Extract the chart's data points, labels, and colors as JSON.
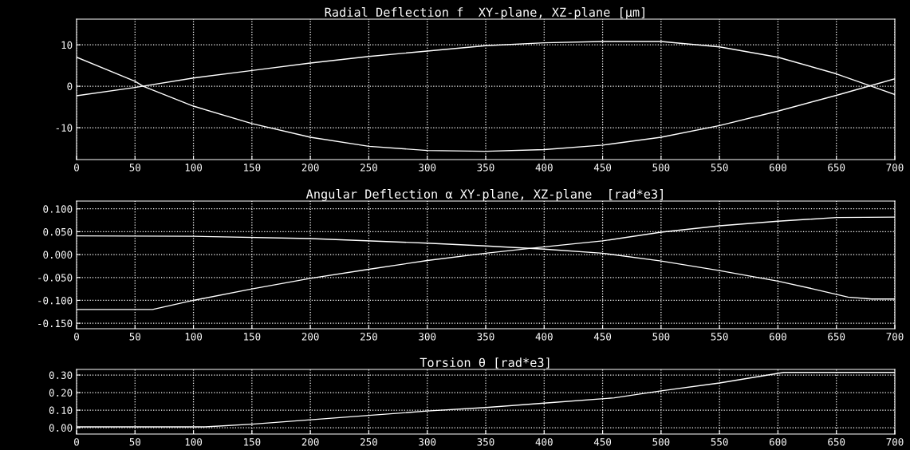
{
  "chart_data": [
    {
      "type": "line",
      "title": "Radial Deflection f  XY-plane, XZ-plane [µm]",
      "xlim": [
        0,
        700
      ],
      "xticks": [
        0,
        50,
        100,
        150,
        200,
        250,
        300,
        350,
        400,
        450,
        500,
        550,
        600,
        650,
        700
      ],
      "ylim": [
        -17.7,
        16.2
      ],
      "yticks": [
        -10,
        0,
        10
      ],
      "grid": true,
      "line_style": "solid",
      "marker": "none",
      "series": [
        {
          "color": "#ffffff",
          "x": [
            0,
            50,
            100,
            150,
            200,
            250,
            300,
            350,
            400,
            450,
            500,
            550,
            600,
            650,
            680,
            700
          ],
          "values": [
            -2.3,
            -0.3,
            2,
            3.8,
            5.6,
            7.2,
            8.5,
            9.8,
            10.5,
            10.8,
            10.8,
            9.5,
            7,
            3,
            0,
            -2
          ]
        },
        {
          "color": "#ffffff",
          "x": [
            0,
            50,
            57,
            100,
            150,
            200,
            250,
            300,
            350,
            400,
            450,
            500,
            550,
            600,
            650,
            700
          ],
          "values": [
            7,
            1.2,
            0,
            -4.8,
            -9,
            -12.3,
            -14.5,
            -15.5,
            -15.7,
            -15.3,
            -14.2,
            -12.3,
            -9.5,
            -6,
            -2.2,
            1.8
          ]
        }
      ]
    },
    {
      "type": "line",
      "title": "Angular Deflection α XY-plane, XZ-plane  [rad*e3]",
      "xlim": [
        0,
        700
      ],
      "xticks": [
        0,
        50,
        100,
        150,
        200,
        250,
        300,
        350,
        400,
        450,
        500,
        550,
        600,
        650,
        700
      ],
      "ylim": [
        -0.162,
        0.117
      ],
      "yticks": [
        {
          "value": -0.15,
          "label": "-0.150"
        },
        {
          "value": -0.1,
          "label": "-0.100"
        },
        {
          "value": -0.05,
          "label": "-0.050"
        },
        {
          "value": 0,
          "label": "0.000"
        },
        {
          "value": 0.05,
          "label": "0.050"
        },
        {
          "value": 0.1,
          "label": "0.100"
        }
      ],
      "grid": true,
      "line_style": "solid",
      "marker": "none",
      "series": [
        {
          "color": "#ffffff",
          "x": [
            0,
            100,
            200,
            300,
            350,
            400,
            450,
            500,
            550,
            600,
            630,
            660,
            680,
            700
          ],
          "values": [
            0.041,
            0.04,
            0.035,
            0.025,
            0.019,
            0.012,
            0.003,
            -0.014,
            -0.035,
            -0.058,
            -0.075,
            -0.093,
            -0.097,
            -0.097
          ]
        },
        {
          "color": "#ffffff",
          "x": [
            0,
            65,
            100,
            150,
            200,
            250,
            300,
            350,
            400,
            450,
            500,
            550,
            600,
            650,
            700
          ],
          "values": [
            -0.12,
            -0.12,
            -0.1,
            -0.075,
            -0.052,
            -0.032,
            -0.013,
            0.003,
            0.017,
            0.03,
            0.049,
            0.063,
            0.073,
            0.081,
            0.082
          ]
        }
      ]
    },
    {
      "type": "line",
      "title": "Torsion θ [rad*e3]",
      "xlim": [
        0,
        700
      ],
      "xticks": [
        0,
        50,
        100,
        150,
        200,
        250,
        300,
        350,
        400,
        450,
        500,
        550,
        600,
        650,
        700
      ],
      "ylim": [
        -0.036,
        0.332
      ],
      "yticks": [
        {
          "value": 0,
          "label": "0.00"
        },
        {
          "value": 0.1,
          "label": "0.10"
        },
        {
          "value": 0.2,
          "label": "0.20"
        },
        {
          "value": 0.3,
          "label": "0.30"
        }
      ],
      "grid": true,
      "line_style": "solid",
      "marker": "none",
      "series": [
        {
          "color": "#ffffff",
          "x": [
            0,
            110,
            150,
            200,
            250,
            300,
            350,
            400,
            460,
            500,
            550,
            605,
            700
          ],
          "values": [
            0.005,
            0.005,
            0.02,
            0.045,
            0.07,
            0.095,
            0.115,
            0.14,
            0.17,
            0.21,
            0.255,
            0.315,
            0.315
          ]
        }
      ]
    }
  ]
}
